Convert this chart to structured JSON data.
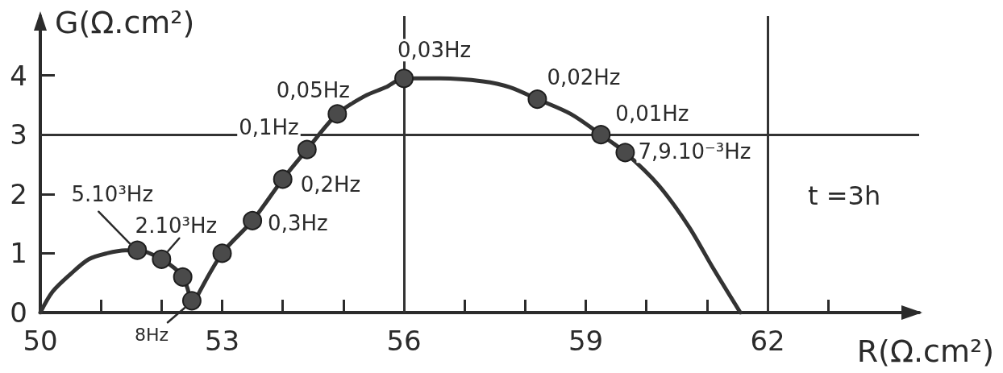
{
  "chart_data": {
    "type": "line",
    "xlabel": "R(Ω.cm²)",
    "ylabel": "G(Ω.cm²)",
    "xlim": [
      50,
      64.5
    ],
    "ylim": [
      0,
      5
    ],
    "xticks": [
      50,
      {
        "value": 51,
        "label": null
      },
      {
        "value": 52,
        "label": null
      },
      53,
      {
        "value": 54,
        "label": null
      },
      {
        "value": 55,
        "label": null
      },
      56,
      {
        "value": 57,
        "label": null
      },
      {
        "value": 58,
        "label": null
      },
      59,
      {
        "value": 60,
        "label": null
      },
      {
        "value": 61,
        "label": null
      },
      62,
      {
        "value": 63,
        "label": null
      }
    ],
    "yticks": [
      0,
      1,
      2,
      3,
      4
    ],
    "line_style": "solid",
    "series": [
      {
        "color": "#333333",
        "marker": "none",
        "x": [
          50,
          50.2,
          50.5,
          50.8,
          51.1,
          51.4,
          51.6,
          52.0,
          52.35,
          52.5
        ],
        "values": [
          0,
          0.35,
          0.65,
          0.9,
          1.0,
          1.05,
          1.05,
          0.9,
          0.6,
          0.1
        ]
      },
      {
        "color": "#333333",
        "marker": "none",
        "x": [
          52.5,
          53.0,
          53.5,
          54.0,
          54.4,
          54.9,
          55.35,
          55.7,
          56.0,
          56.6,
          57.3,
          57.75,
          58.2,
          58.75,
          59.25,
          59.65,
          60.2,
          60.7,
          61.1,
          61.55
        ],
        "values": [
          0.1,
          1.0,
          1.55,
          2.25,
          2.75,
          3.35,
          3.65,
          3.8,
          3.95,
          3.95,
          3.9,
          3.8,
          3.6,
          3.35,
          3.0,
          2.7,
          2.15,
          1.45,
          0.75,
          0
        ]
      },
      {
        "type": "scatter",
        "color": "#4a4a4a",
        "marker": "circle",
        "x": [
          51.6,
          52.0,
          52.35,
          52.5,
          53.0,
          53.5,
          54.0,
          54.4,
          54.9,
          56.0,
          58.2,
          59.25,
          59.65
        ],
        "values": [
          1.05,
          0.9,
          0.6,
          0.2,
          1.0,
          1.55,
          2.25,
          2.75,
          3.35,
          3.95,
          3.6,
          3.0,
          2.7
        ]
      }
    ],
    "ref_lines": [
      {
        "axis": "y",
        "value": 3,
        "color": "#333333"
      },
      {
        "axis": "x",
        "value": 56,
        "color": "#333333"
      },
      {
        "axis": "x",
        "value": 62,
        "color": "#333333"
      }
    ],
    "annotations": [
      {
        "text": "5.10³Hz",
        "x": 51.6,
        "y": 1.05
      },
      {
        "text": "2.10³Hz",
        "x": 52.0,
        "y": 0.9
      },
      {
        "text": "8Hz",
        "x": 52.5,
        "y": 0.2
      },
      {
        "text": "0,3Hz",
        "x": 53.5,
        "y": 1.55
      },
      {
        "text": "0,2Hz",
        "x": 54.0,
        "y": 2.25
      },
      {
        "text": "0,1Hz",
        "x": 54.4,
        "y": 2.75
      },
      {
        "text": "0,05Hz",
        "x": 54.9,
        "y": 3.35
      },
      {
        "text": "0,03Hz",
        "x": 56.0,
        "y": 3.95
      },
      {
        "text": "0,02Hz",
        "x": 58.2,
        "y": 3.6
      },
      {
        "text": "0,01Hz",
        "x": 59.25,
        "y": 3.0
      },
      {
        "text": "7,9.10⁻³Hz",
        "x": 59.65,
        "y": 2.7
      },
      "t =3h"
    ]
  }
}
